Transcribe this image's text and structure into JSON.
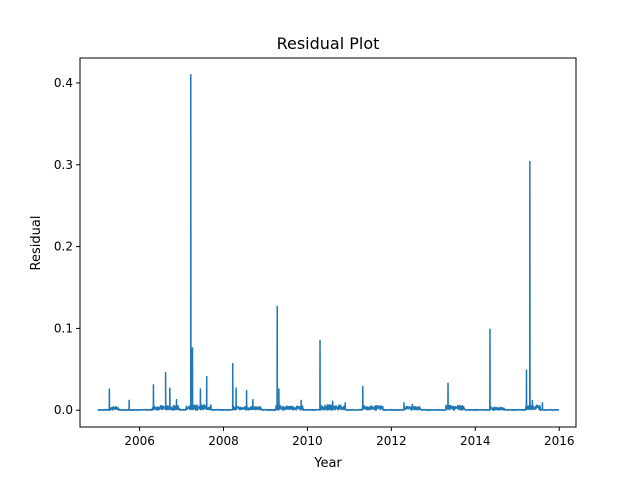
{
  "chart_data": {
    "type": "line",
    "title": "Residual Plot",
    "xlabel": "Year",
    "ylabel": "Residual",
    "xlim": [
      2004.58,
      2016.4
    ],
    "ylim": [
      -0.0205,
      0.4305
    ],
    "xticks": [
      2006,
      2008,
      2010,
      2012,
      2014,
      2016
    ],
    "xtick_labels": [
      "2006",
      "2008",
      "2010",
      "2012",
      "2014",
      "2016"
    ],
    "yticks": [
      0.0,
      0.1,
      0.2,
      0.3,
      0.4
    ],
    "ytick_labels": [
      "0.0",
      "0.1",
      "0.2",
      "0.3",
      "0.4"
    ],
    "grid": false,
    "series": [
      {
        "color": "#1f77b4",
        "x_range": [
          2005.0,
          2016.0
        ],
        "baseline": 0.0,
        "noise_sections": [
          {
            "x": [
              2005.3,
              2005.5
            ],
            "amp": 0.004
          },
          {
            "x": [
              2006.3,
              2006.95
            ],
            "amp": 0.005
          },
          {
            "x": [
              2007.1,
              2007.7
            ],
            "amp": 0.006
          },
          {
            "x": [
              2008.2,
              2008.9
            ],
            "amp": 0.004
          },
          {
            "x": [
              2009.25,
              2009.9
            ],
            "amp": 0.005
          },
          {
            "x": [
              2010.3,
              2010.9
            ],
            "amp": 0.006
          },
          {
            "x": [
              2011.3,
              2011.8
            ],
            "amp": 0.005
          },
          {
            "x": [
              2012.3,
              2012.7
            ],
            "amp": 0.004
          },
          {
            "x": [
              2013.3,
              2013.75
            ],
            "amp": 0.006
          },
          {
            "x": [
              2014.35,
              2014.7
            ],
            "amp": 0.003
          },
          {
            "x": [
              2015.2,
              2015.55
            ],
            "amp": 0.006
          }
        ],
        "spikes": [
          {
            "x": 2005.28,
            "y": 0.026
          },
          {
            "x": 2005.75,
            "y": 0.012
          },
          {
            "x": 2006.33,
            "y": 0.031
          },
          {
            "x": 2006.62,
            "y": 0.046
          },
          {
            "x": 2006.72,
            "y": 0.027
          },
          {
            "x": 2006.88,
            "y": 0.013
          },
          {
            "x": 2007.22,
            "y": 0.41
          },
          {
            "x": 2007.26,
            "y": 0.076
          },
          {
            "x": 2007.45,
            "y": 0.026
          },
          {
            "x": 2007.6,
            "y": 0.041
          },
          {
            "x": 2008.22,
            "y": 0.057
          },
          {
            "x": 2008.3,
            "y": 0.027
          },
          {
            "x": 2008.55,
            "y": 0.024
          },
          {
            "x": 2008.7,
            "y": 0.013
          },
          {
            "x": 2009.28,
            "y": 0.127
          },
          {
            "x": 2009.32,
            "y": 0.026
          },
          {
            "x": 2009.85,
            "y": 0.012
          },
          {
            "x": 2010.3,
            "y": 0.085
          },
          {
            "x": 2010.6,
            "y": 0.011
          },
          {
            "x": 2010.9,
            "y": 0.009
          },
          {
            "x": 2011.32,
            "y": 0.029
          },
          {
            "x": 2012.3,
            "y": 0.009
          },
          {
            "x": 2012.5,
            "y": 0.007
          },
          {
            "x": 2013.35,
            "y": 0.033
          },
          {
            "x": 2014.35,
            "y": 0.099
          },
          {
            "x": 2015.22,
            "y": 0.049
          },
          {
            "x": 2015.3,
            "y": 0.304
          },
          {
            "x": 2015.36,
            "y": 0.012
          },
          {
            "x": 2015.6,
            "y": 0.009
          }
        ]
      }
    ]
  }
}
